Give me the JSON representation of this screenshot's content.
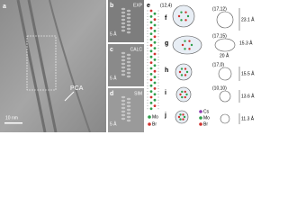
{
  "panels": {
    "a": {
      "label": "a",
      "annotation": "PCA",
      "scale_bar": "10 nm"
    },
    "b": {
      "label": "b",
      "tag": "EXP",
      "scale_bar": "5 Å"
    },
    "c": {
      "label": "c",
      "tag": "CALC",
      "scale_bar": "5 Å"
    },
    "d": {
      "label": "d",
      "tag": "SIM",
      "scale_bar": "5 Å"
    },
    "e": {
      "label": "e",
      "chirality": "(12,4)",
      "legend": [
        "Mo",
        "Br"
      ]
    },
    "f": {
      "label": "f",
      "chirality": "(17,12)",
      "diameter": "23.1 Å"
    },
    "g": {
      "label": "g",
      "chirality": "(17,15)",
      "diameter": "15.3 Å",
      "inner": "20 Å"
    },
    "h": {
      "label": "h",
      "chirality": "(17,0)",
      "diameter": "15.5 Å"
    },
    "i": {
      "label": "i",
      "chirality": "(10,10)",
      "diameter": "13.6 Å"
    },
    "j": {
      "label": "j",
      "diameter": "11.3 Å",
      "legend": [
        "Cs",
        "Mo",
        "Br"
      ]
    }
  }
}
